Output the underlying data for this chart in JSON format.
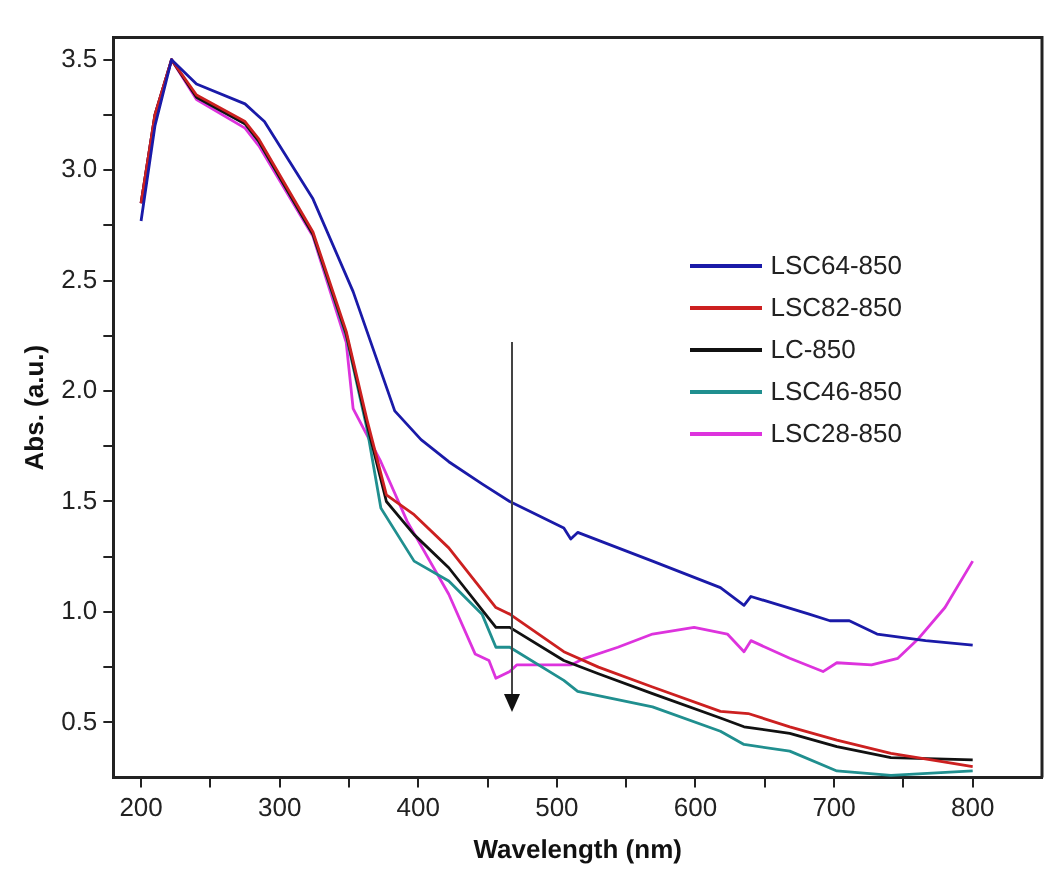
{
  "chart_data": {
    "type": "line",
    "xlabel": "Wavelength (nm)",
    "ylabel": "Abs. (a.u.)",
    "xlim": [
      180,
      850
    ],
    "ylim": [
      0.25,
      3.6
    ],
    "xticks": [
      200,
      {
        "value": 250,
        "label": null
      },
      300,
      {
        "value": 350,
        "label": null
      },
      400,
      {
        "value": 450,
        "label": null
      },
      500,
      {
        "value": 550,
        "label": null
      },
      600,
      {
        "value": 650,
        "label": null
      },
      700,
      {
        "value": 750,
        "label": null
      },
      800
    ],
    "yticks": [
      0.5,
      {
        "value": 0.75,
        "label": null
      },
      {
        "value": 1,
        "label": "1.0"
      },
      {
        "value": 1.25,
        "label": null
      },
      1.5,
      {
        "value": 1.75,
        "label": null
      },
      {
        "value": 2,
        "label": "2.0"
      },
      {
        "value": 2.25,
        "label": null
      },
      2.5,
      {
        "value": 2.75,
        "label": null
      },
      {
        "value": 3,
        "label": "3.0"
      },
      {
        "value": 3.25,
        "label": null
      },
      3.5
    ],
    "legend": "top right",
    "marker": "none",
    "line_style": "solid",
    "grid": false,
    "series": [
      {
        "name": "LSC64-850",
        "color": "#1a1aa8",
        "x": [
          200,
          210,
          222,
          240,
          275,
          289,
          324,
          353,
          373,
          383,
          402,
          422,
          446,
          466,
          505,
          510,
          515,
          569,
          618,
          635,
          640,
          682,
          697,
          711,
          731,
          766,
          800
        ],
        "values": [
          2.77,
          3.2,
          3.5,
          3.39,
          3.3,
          3.22,
          2.87,
          2.45,
          2.09,
          1.91,
          1.78,
          1.68,
          1.58,
          1.5,
          1.38,
          1.33,
          1.36,
          1.23,
          1.11,
          1.03,
          1.07,
          0.99,
          0.96,
          0.96,
          0.9,
          0.87,
          0.85
        ]
      },
      {
        "name": "LSC82-850",
        "color": "#cc2020",
        "x": [
          200,
          210,
          222,
          240,
          275,
          285,
          324,
          348,
          363,
          377,
          397,
          422,
          456,
          466,
          505,
          530,
          569,
          618,
          638,
          668,
          702,
          741,
          800
        ],
        "values": [
          2.85,
          3.25,
          3.5,
          3.34,
          3.22,
          3.14,
          2.72,
          2.27,
          1.87,
          1.53,
          1.44,
          1.29,
          1.02,
          0.99,
          0.82,
          0.75,
          0.66,
          0.55,
          0.54,
          0.48,
          0.42,
          0.36,
          0.3
        ]
      },
      {
        "name": "LC-850",
        "color": "#111111",
        "x": [
          200,
          210,
          222,
          240,
          275,
          285,
          324,
          348,
          363,
          377,
          397,
          422,
          456,
          466,
          505,
          530,
          569,
          618,
          635,
          668,
          702,
          741,
          800
        ],
        "values": [
          2.85,
          3.25,
          3.5,
          3.33,
          3.21,
          3.13,
          2.71,
          2.26,
          1.85,
          1.5,
          1.35,
          1.2,
          0.93,
          0.93,
          0.78,
          0.72,
          0.63,
          0.52,
          0.48,
          0.45,
          0.39,
          0.34,
          0.33
        ]
      },
      {
        "name": "LSC46-850",
        "color": "#208f8f",
        "x": [
          240,
          275,
          285,
          324,
          348,
          363,
          373,
          397,
          422,
          446,
          456,
          466,
          505,
          515,
          569,
          618,
          635,
          668,
          702,
          741,
          800
        ],
        "values": [
          3.33,
          3.21,
          3.13,
          2.71,
          2.25,
          1.83,
          1.47,
          1.23,
          1.14,
          0.99,
          0.84,
          0.84,
          0.69,
          0.64,
          0.57,
          0.46,
          0.4,
          0.37,
          0.28,
          0.26,
          0.28
        ]
      },
      {
        "name": "LSC28-850",
        "color": "#dd33dd",
        "x": [
          200,
          210,
          222,
          240,
          275,
          285,
          324,
          348,
          353,
          373,
          392,
          422,
          441,
          451,
          456,
          466,
          471,
          495,
          510,
          520,
          544,
          569,
          599,
          623,
          635,
          640,
          668,
          692,
          702,
          727,
          746,
          761,
          780,
          800
        ],
        "values": [
          2.85,
          3.25,
          3.5,
          3.32,
          3.19,
          3.11,
          2.7,
          2.22,
          1.92,
          1.68,
          1.41,
          1.08,
          0.81,
          0.78,
          0.7,
          0.73,
          0.76,
          0.76,
          0.76,
          0.79,
          0.84,
          0.9,
          0.93,
          0.9,
          0.82,
          0.87,
          0.79,
          0.73,
          0.77,
          0.76,
          0.79,
          0.88,
          1.02,
          1.23
        ]
      }
    ]
  }
}
